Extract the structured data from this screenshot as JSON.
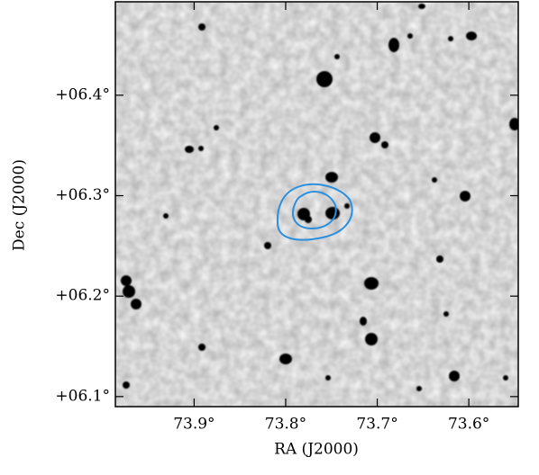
{
  "chart_data": {
    "type": "image",
    "xlabel": "RA (J2000)",
    "ylabel": "Dec (J2000)",
    "xlim": [
      73.986,
      73.546
    ],
    "ylim": [
      6.09,
      6.493
    ],
    "xticks": [
      {
        "value": 73.9,
        "label": "73.9°"
      },
      {
        "value": 73.8,
        "label": "73.8°"
      },
      {
        "value": 73.7,
        "label": "73.7°"
      },
      {
        "value": 73.6,
        "label": "73.6°"
      }
    ],
    "yticks": [
      {
        "value": 6.1,
        "label": "+06.1°"
      },
      {
        "value": 6.2,
        "label": "+06.2°"
      },
      {
        "value": 6.3,
        "label": "+06.3°"
      },
      {
        "value": 6.4,
        "label": "+06.4°"
      }
    ],
    "contour_color": "#2b8fe0"
  }
}
